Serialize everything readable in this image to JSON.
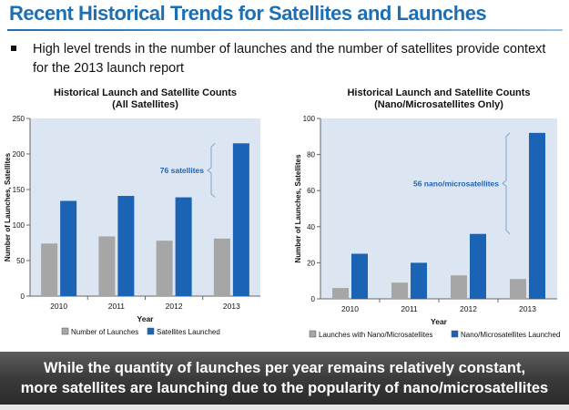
{
  "page": {
    "title": "Recent Historical Trends for Satellites and Launches",
    "bullet": "High level trends in the number of launches and the number of satellites provide context for the 2013 launch report",
    "banner_line1": "While the quantity of launches per year remains relatively constant,",
    "banner_line2": "more satellites are launching due to the popularity of nano/microsatellites"
  },
  "colors": {
    "title": "#1c6fb5",
    "launches": "#a6a6a6",
    "satellites": "#1b64b5",
    "plot_bg": "#dce6f2",
    "annotation": "#1b64b5"
  },
  "chart_data": [
    {
      "type": "bar",
      "title": "Historical Launch and Satellite Counts",
      "subtitle": "(All Satellites)",
      "xlabel": "Year",
      "ylabel": "Number of Launches, Satellites",
      "categories": [
        "2010",
        "2011",
        "2012",
        "2013"
      ],
      "ylim": [
        0,
        250
      ],
      "yticks": [
        0,
        50,
        100,
        150,
        200,
        250
      ],
      "series": [
        {
          "name": "Number of Launches",
          "values": [
            74,
            84,
            78,
            81
          ]
        },
        {
          "name": "Satellites Launched",
          "values": [
            134,
            141,
            139,
            215
          ]
        }
      ],
      "annotation": {
        "text": "76 satellites",
        "from": 139,
        "to": 215
      },
      "legend": "bottom"
    },
    {
      "type": "bar",
      "title": "Historical Launch and Satellite Counts",
      "subtitle": "(Nano/Microsatellites Only)",
      "xlabel": "Year",
      "ylabel": "Number of Launches, Satellites",
      "categories": [
        "2010",
        "2011",
        "2012",
        "2013"
      ],
      "ylim": [
        0,
        100
      ],
      "yticks": [
        0,
        20,
        40,
        60,
        80,
        100
      ],
      "series": [
        {
          "name": "Launches with Nano/Microsatellites",
          "values": [
            6,
            9,
            13,
            11
          ]
        },
        {
          "name": "Nano/Microsatellites Launched",
          "values": [
            25,
            20,
            36,
            92
          ]
        }
      ],
      "annotation": {
        "text": "56 nano/microsatellites",
        "from": 36,
        "to": 92
      },
      "legend": "bottom"
    }
  ]
}
